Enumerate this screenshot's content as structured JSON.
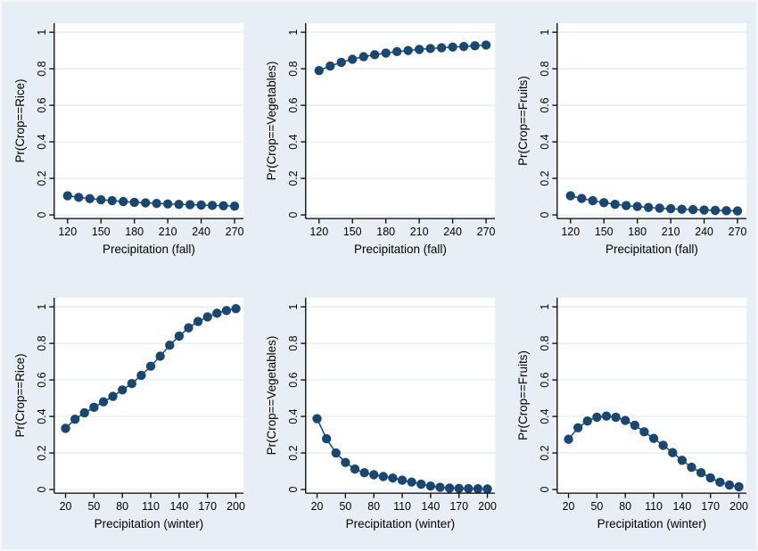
{
  "figure": {
    "background_color": "#e8eff4",
    "plot_background_color": "#ffffff",
    "grid_color": "#e2ebf0",
    "axis_color": "#000000",
    "text_color": "#000000",
    "marker_color": "#1a476f",
    "line_color": "#1a476f"
  },
  "chart_data": [
    {
      "type": "line",
      "ylabel": "Pr(Crop==Rice)",
      "xlabel": "Precipitation (fall)",
      "xticks": [
        120,
        150,
        180,
        210,
        240,
        270
      ],
      "yticks": [
        0,
        0.2,
        0.4,
        0.6,
        0.8,
        1
      ],
      "ytick_labels": [
        "0",
        "0.2",
        "0.4",
        "0.6",
        "0.8",
        "1"
      ],
      "xlim": [
        108,
        278
      ],
      "ylim": [
        -0.02,
        1.05
      ],
      "grid": true,
      "x": [
        120,
        130,
        140,
        150,
        160,
        170,
        180,
        190,
        200,
        210,
        220,
        230,
        240,
        250,
        260,
        270
      ],
      "y": [
        0.105,
        0.096,
        0.089,
        0.083,
        0.078,
        0.073,
        0.069,
        0.066,
        0.063,
        0.06,
        0.058,
        0.056,
        0.054,
        0.052,
        0.05,
        0.048
      ]
    },
    {
      "type": "line",
      "ylabel": "Pr(Crop==Vegetables)",
      "xlabel": "Precipitation (fall)",
      "xticks": [
        120,
        150,
        180,
        210,
        240,
        270
      ],
      "yticks": [
        0,
        0.2,
        0.4,
        0.6,
        0.8,
        1
      ],
      "ytick_labels": [
        "0",
        "0.2",
        "0.4",
        "0.6",
        "0.8",
        "1"
      ],
      "xlim": [
        108,
        278
      ],
      "ylim": [
        -0.02,
        1.05
      ],
      "grid": true,
      "x": [
        120,
        130,
        140,
        150,
        160,
        170,
        180,
        190,
        200,
        210,
        220,
        230,
        240,
        250,
        260,
        270
      ],
      "y": [
        0.79,
        0.815,
        0.835,
        0.852,
        0.866,
        0.877,
        0.886,
        0.894,
        0.9,
        0.906,
        0.911,
        0.915,
        0.919,
        0.922,
        0.926,
        0.93
      ]
    },
    {
      "type": "line",
      "ylabel": "Pr(Crop==Fruits)",
      "xlabel": "Precipitation (fall)",
      "xticks": [
        120,
        150,
        180,
        210,
        240,
        270
      ],
      "yticks": [
        0,
        0.2,
        0.4,
        0.6,
        0.8,
        1
      ],
      "ytick_labels": [
        "0",
        "0.2",
        "0.4",
        "0.6",
        "0.8",
        "1"
      ],
      "xlim": [
        108,
        278
      ],
      "ylim": [
        -0.02,
        1.05
      ],
      "grid": true,
      "x": [
        120,
        130,
        140,
        150,
        160,
        170,
        180,
        190,
        200,
        210,
        220,
        230,
        240,
        250,
        260,
        270
      ],
      "y": [
        0.105,
        0.09,
        0.078,
        0.067,
        0.058,
        0.051,
        0.046,
        0.041,
        0.037,
        0.034,
        0.031,
        0.029,
        0.027,
        0.025,
        0.023,
        0.022
      ]
    },
    {
      "type": "line",
      "ylabel": "Pr(Crop==Rice)",
      "xlabel": "Precipitation (winter)",
      "xticks": [
        20,
        50,
        80,
        110,
        140,
        170,
        200
      ],
      "yticks": [
        0,
        0.2,
        0.4,
        0.6,
        0.8,
        1
      ],
      "ytick_labels": [
        "0",
        "0.2",
        "0.4",
        "0.6",
        "0.8",
        "1"
      ],
      "xlim": [
        8,
        208
      ],
      "ylim": [
        -0.02,
        1.05
      ],
      "grid": true,
      "x": [
        20,
        30,
        40,
        50,
        60,
        70,
        80,
        90,
        100,
        110,
        120,
        130,
        140,
        150,
        160,
        170,
        180,
        190,
        200
      ],
      "y": [
        0.335,
        0.385,
        0.42,
        0.45,
        0.48,
        0.51,
        0.545,
        0.58,
        0.625,
        0.675,
        0.73,
        0.79,
        0.84,
        0.885,
        0.92,
        0.945,
        0.965,
        0.98,
        0.99
      ]
    },
    {
      "type": "line",
      "ylabel": "Pr(Crop==Vegetables)",
      "xlabel": "Precipitation (winter)",
      "xticks": [
        20,
        50,
        80,
        110,
        140,
        170,
        200
      ],
      "yticks": [
        0,
        0.2,
        0.4,
        0.6,
        0.8,
        1
      ],
      "ytick_labels": [
        "0",
        "0.2",
        "0.4",
        "0.6",
        "0.8",
        "1"
      ],
      "xlim": [
        8,
        208
      ],
      "ylim": [
        -0.02,
        1.05
      ],
      "grid": true,
      "x": [
        20,
        30,
        40,
        50,
        60,
        70,
        80,
        90,
        100,
        110,
        120,
        130,
        140,
        150,
        160,
        170,
        180,
        190,
        200
      ],
      "y": [
        0.388,
        0.278,
        0.2,
        0.148,
        0.112,
        0.092,
        0.081,
        0.071,
        0.063,
        0.051,
        0.041,
        0.029,
        0.019,
        0.012,
        0.008,
        0.006,
        0.005,
        0.004,
        0.003
      ]
    },
    {
      "type": "line",
      "ylabel": "Pr(Crop==Fruits)",
      "xlabel": "Precipitation (winter)",
      "xticks": [
        20,
        50,
        80,
        110,
        140,
        170,
        200
      ],
      "yticks": [
        0,
        0.2,
        0.4,
        0.6,
        0.8,
        1
      ],
      "ytick_labels": [
        "0",
        "0.2",
        "0.4",
        "0.6",
        "0.8",
        "1"
      ],
      "xlim": [
        8,
        208
      ],
      "ylim": [
        -0.02,
        1.05
      ],
      "grid": true,
      "x": [
        20,
        30,
        40,
        50,
        60,
        70,
        80,
        90,
        100,
        110,
        120,
        130,
        140,
        150,
        160,
        170,
        180,
        190,
        200
      ],
      "y": [
        0.275,
        0.338,
        0.375,
        0.396,
        0.402,
        0.396,
        0.378,
        0.352,
        0.316,
        0.28,
        0.242,
        0.202,
        0.16,
        0.122,
        0.092,
        0.064,
        0.04,
        0.025,
        0.015
      ]
    }
  ]
}
